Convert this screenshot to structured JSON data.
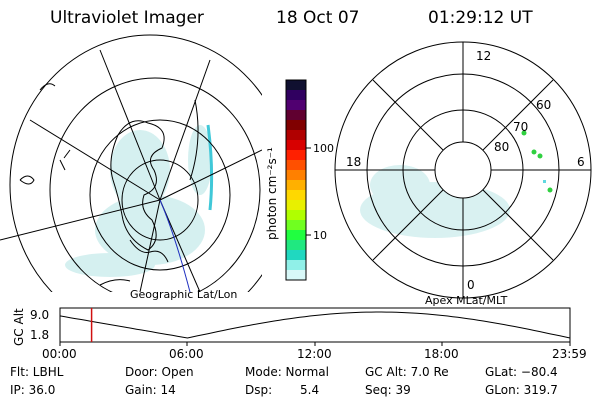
{
  "header": {
    "title": "Ultraviolet Imager",
    "date": "18 Oct 07",
    "time": "01:29:12 UT"
  },
  "colorbar": {
    "unit_label": "photon cm⁻²s⁻¹",
    "ticks": [
      "100",
      "10"
    ],
    "colors": [
      "#101030",
      "#300060",
      "#500070",
      "#600030",
      "#800000",
      "#b00000",
      "#d80000",
      "#ff2000",
      "#ff5000",
      "#ff8000",
      "#ffb000",
      "#ffd800",
      "#e8f000",
      "#b0ff00",
      "#70ff20",
      "#20ff40",
      "#20e880",
      "#20d8c0",
      "#90f0e8",
      "#d8f8f8"
    ]
  },
  "polar_plot": {
    "clock_labels": [
      "12",
      "18",
      "6",
      "0"
    ],
    "lat_labels": [
      "80",
      "70",
      "60"
    ]
  },
  "geo_label": "Geographic Lat/Lon",
  "apex_label": "Apex MLat/MLT",
  "altitude_strip": {
    "ylabel": "GC Alt",
    "yticks": [
      "9.0",
      "1.8"
    ],
    "xticks": [
      "00:00",
      "06:00",
      "12:00",
      "18:00",
      "23:59"
    ],
    "cursor_time": "01:29:12"
  },
  "info": {
    "flt": "Flt: LBHL",
    "door": "Door: Open",
    "mode": "Mode: Normal",
    "gcalt": "GC Alt: 7.0 Re",
    "glat": "GLat: −80.4",
    "ip": "IP: 36.0",
    "gain": "Gain: 14",
    "dsp_label": "Dsp:",
    "dsp_value": "5.4",
    "seq": "Seq: 39",
    "glon": "GLon: 319.7"
  }
}
